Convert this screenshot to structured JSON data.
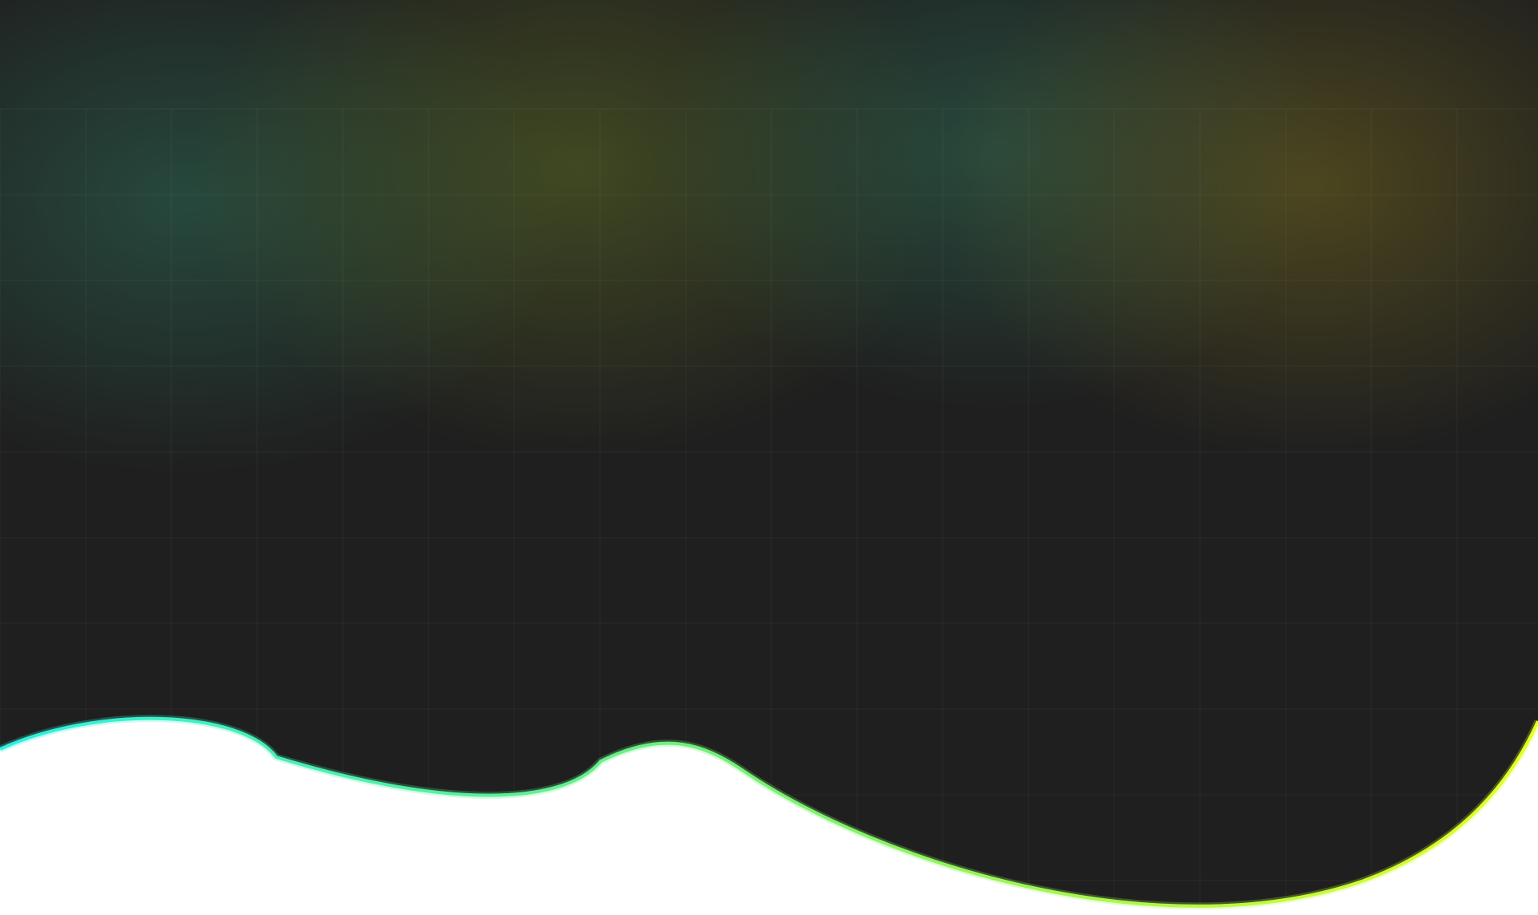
{
  "theme": {
    "base_color": "#1f1f1f",
    "below_wave_color": "#ffffff",
    "grid_line_color": "#ffffff",
    "glow_teal": "#2d6b55",
    "glow_olive": "#5b6a24",
    "glow_amber": "#6a5f1e"
  },
  "wave": {
    "gradient_start": "#2ef0e0",
    "gradient_mid": "#6ef07a",
    "gradient_end": "#e4ff20"
  }
}
